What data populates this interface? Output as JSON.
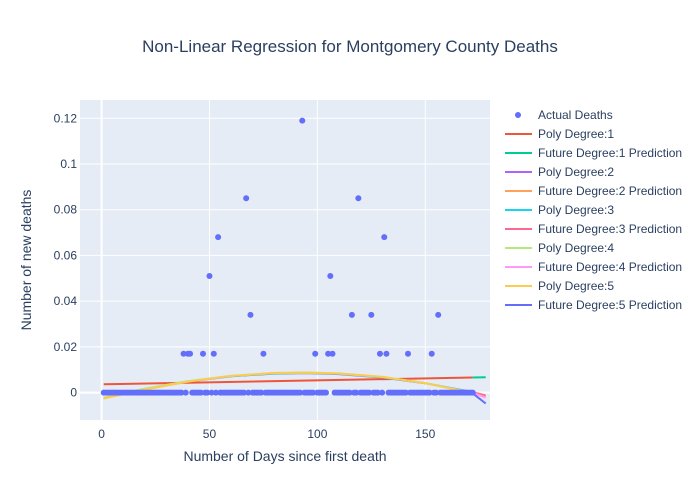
{
  "chart_data": {
    "type": "scatter",
    "title": "Non-Linear Regression for Montgomery County Deaths",
    "xlabel": "Number of Days since first death",
    "ylabel": "Number of new deaths",
    "xlim": [
      -10,
      180
    ],
    "ylim": [
      -0.012,
      0.128
    ],
    "xticks": [
      0,
      50,
      100,
      150
    ],
    "xtick_labels": [
      "0",
      "50",
      "100",
      "150"
    ],
    "yticks": [
      0,
      0.02,
      0.04,
      0.06,
      0.08,
      0.1,
      0.12
    ],
    "ytick_labels": [
      "0",
      "0.02",
      "0.04",
      "0.06",
      "0.08",
      "0.1",
      "0.12"
    ],
    "grid": true,
    "legend_position": "right",
    "plot_background": "#e5ecf6",
    "scatter": {
      "name": "Actual Deaths",
      "color": "#636efa",
      "zero_x_range": [
        1,
        172
      ],
      "nonzero_points": [
        [
          38,
          0.017
        ],
        [
          40,
          0.017
        ],
        [
          41,
          0.017
        ],
        [
          47,
          0.017
        ],
        [
          50,
          0.051
        ],
        [
          52,
          0.017
        ],
        [
          54,
          0.068
        ],
        [
          67,
          0.085
        ],
        [
          69,
          0.034
        ],
        [
          75,
          0.017
        ],
        [
          93,
          0.119
        ],
        [
          99,
          0.017
        ],
        [
          105,
          0.017
        ],
        [
          106,
          0.051
        ],
        [
          107,
          0.017
        ],
        [
          116,
          0.034
        ],
        [
          119,
          0.085
        ],
        [
          125,
          0.034
        ],
        [
          129,
          0.017
        ],
        [
          131,
          0.068
        ],
        [
          132,
          0.017
        ],
        [
          142,
          0.017
        ],
        [
          153,
          0.017
        ],
        [
          156,
          0.034
        ]
      ]
    },
    "series": [
      {
        "name": "Poly Degree:1",
        "color": "#ef553b",
        "kind": "fit",
        "x": [
          1,
          172
        ],
        "y": [
          0.0036,
          0.0066
        ]
      },
      {
        "name": "Future Degree:1 Prediction",
        "color": "#00cc96",
        "kind": "prediction",
        "x": [
          172,
          178
        ],
        "y": [
          0.0066,
          0.0067
        ]
      },
      {
        "name": "Poly Degree:2",
        "color": "#ab63fa",
        "kind": "fit",
        "x": [
          1,
          20,
          40,
          60,
          80,
          95,
          110,
          130,
          150,
          172
        ],
        "y": [
          -0.0025,
          0.0015,
          0.0048,
          0.0071,
          0.0083,
          0.0085,
          0.0081,
          0.0066,
          0.0041,
          0.0002
        ]
      },
      {
        "name": "Future Degree:2 Prediction",
        "color": "#ffa15a",
        "kind": "prediction",
        "x": [
          172,
          178
        ],
        "y": [
          0.0002,
          -0.0012
        ]
      },
      {
        "name": "Poly Degree:3",
        "color": "#19d3f3",
        "kind": "fit",
        "x": [
          1,
          20,
          40,
          60,
          80,
          95,
          110,
          130,
          150,
          172
        ],
        "y": [
          -0.0024,
          0.0016,
          0.0049,
          0.0072,
          0.0084,
          0.0086,
          0.0082,
          0.0067,
          0.0041,
          0.0001
        ]
      },
      {
        "name": "Future Degree:3 Prediction",
        "color": "#ff6692",
        "kind": "prediction",
        "x": [
          172,
          178
        ],
        "y": [
          0.0001,
          -0.0014
        ]
      },
      {
        "name": "Poly Degree:4",
        "color": "#b6e880",
        "kind": "fit",
        "x": [
          1,
          20,
          40,
          60,
          80,
          95,
          110,
          130,
          150,
          172
        ],
        "y": [
          -0.0022,
          0.0017,
          0.005,
          0.0073,
          0.0085,
          0.0087,
          0.0083,
          0.0068,
          0.0042,
          -0.0001
        ]
      },
      {
        "name": "Future Degree:4 Prediction",
        "color": "#ff97ff",
        "kind": "prediction",
        "x": [
          172,
          178
        ],
        "y": [
          -0.0001,
          -0.0022
        ]
      },
      {
        "name": "Poly Degree:5",
        "color": "#fecb52",
        "kind": "fit",
        "x": [
          1,
          20,
          40,
          60,
          80,
          95,
          110,
          130,
          150,
          172
        ],
        "y": [
          -0.0026,
          0.0013,
          0.0048,
          0.0073,
          0.0086,
          0.0088,
          0.0084,
          0.0069,
          0.0041,
          -0.0003
        ]
      },
      {
        "name": "Future Degree:5 Prediction",
        "color": "#636efa",
        "kind": "prediction",
        "x": [
          172,
          178
        ],
        "y": [
          -0.0003,
          -0.0048
        ]
      }
    ]
  }
}
